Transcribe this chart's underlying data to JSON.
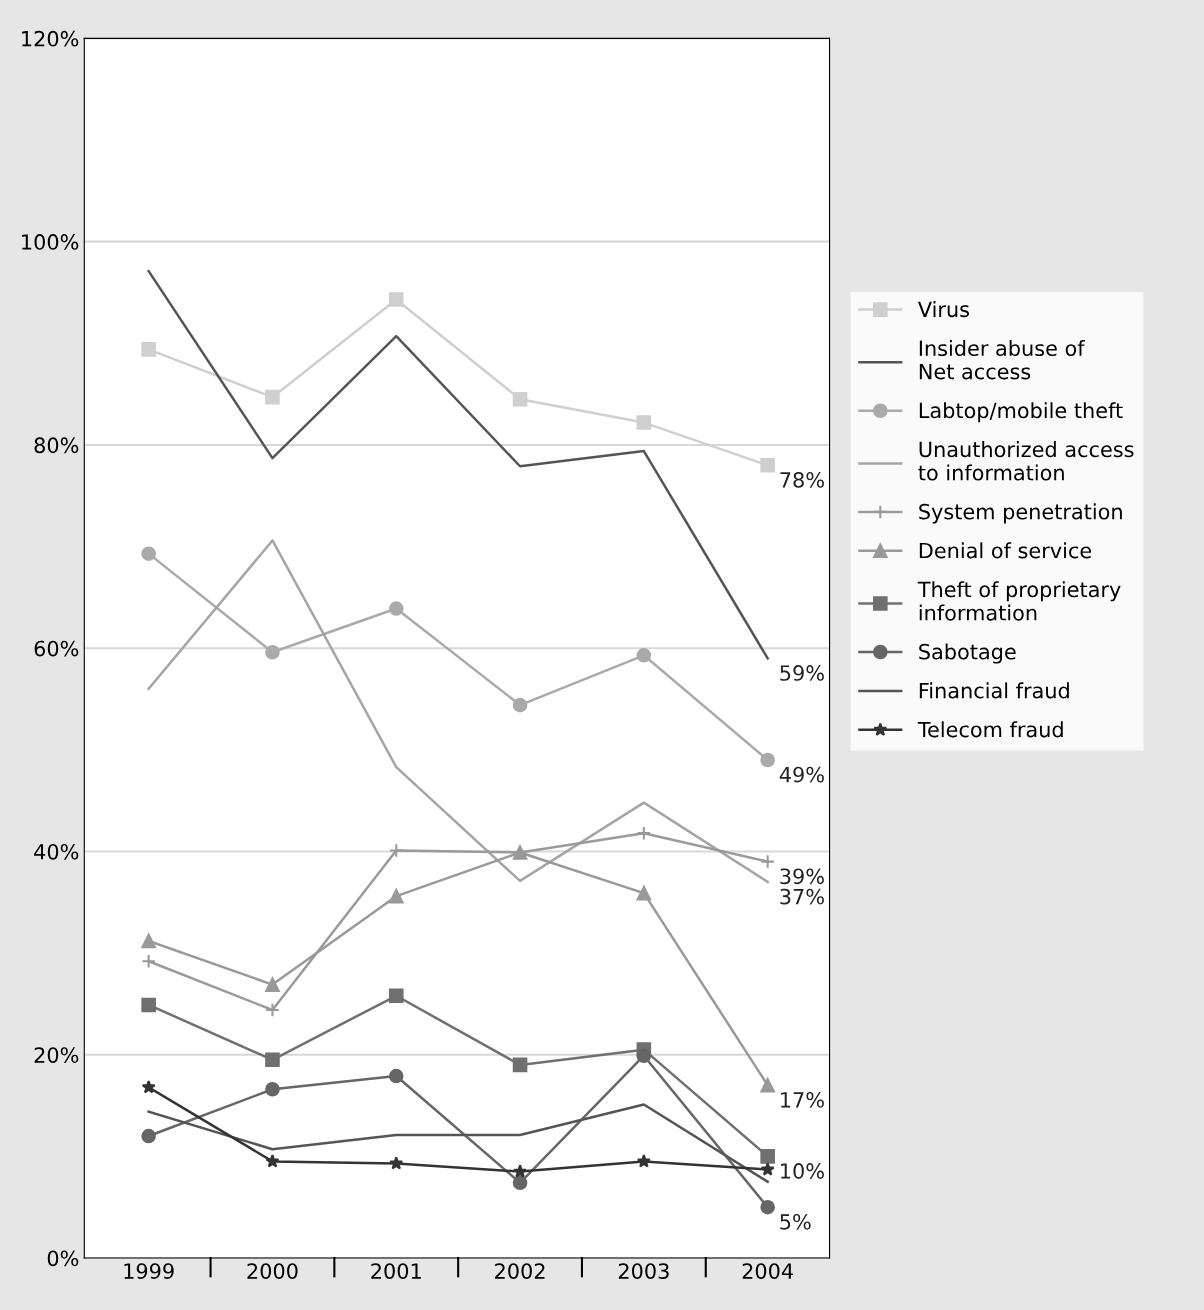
{
  "chart_data": {
    "type": "line",
    "categories": [
      "1999",
      "2000",
      "2001",
      "2002",
      "2003",
      "2004"
    ],
    "ylim": [
      0,
      120
    ],
    "yticks": [
      {
        "value": 0,
        "label": "0%"
      },
      {
        "value": 20,
        "label": "20%"
      },
      {
        "value": 40,
        "label": "40%"
      },
      {
        "value": 60,
        "label": "60%"
      },
      {
        "value": 80,
        "label": "80%"
      },
      {
        "value": 100,
        "label": "100%"
      },
      {
        "value": 120,
        "label": "120%"
      }
    ],
    "grid": "y",
    "legend": "right",
    "series": [
      {
        "name": "Virus",
        "color": "#cfcfcf",
        "marker": "square",
        "values": [
          89.4,
          84.7,
          94.3,
          84.5,
          82.2,
          78
        ],
        "value_labels": [
          null,
          null,
          null,
          null,
          null,
          "78%"
        ]
      },
      {
        "name": "Insider abuse of\nNet access",
        "color": "#555555",
        "marker": "none",
        "values": [
          97.1,
          78.7,
          90.7,
          77.9,
          79.4,
          59
        ],
        "value_labels": [
          null,
          null,
          null,
          null,
          null,
          "59%"
        ]
      },
      {
        "name": "Labtop/mobile theft",
        "color": "#aaaaaa",
        "marker": "circle",
        "values": [
          69.3,
          59.6,
          63.9,
          54.4,
          59.3,
          49
        ],
        "value_labels": [
          null,
          null,
          null,
          null,
          null,
          "49%"
        ]
      },
      {
        "name": "Unauthorized access\nto information",
        "color": "#a5a5a5",
        "marker": "none",
        "values": [
          56.0,
          70.6,
          48.3,
          37.1,
          44.8,
          37
        ],
        "value_labels": [
          null,
          null,
          null,
          null,
          null,
          "37%"
        ]
      },
      {
        "name": "System penetration",
        "color": "#9a9a9a",
        "marker": "cross",
        "values": [
          29.2,
          24.4,
          40.1,
          39.9,
          41.8,
          39
        ],
        "value_labels": [
          null,
          null,
          null,
          null,
          null,
          "39%"
        ]
      },
      {
        "name": "Denial of service",
        "color": "#999999",
        "marker": "triangle",
        "values": [
          31.2,
          26.9,
          35.6,
          39.9,
          35.9,
          17
        ],
        "value_labels": [
          null,
          null,
          null,
          null,
          null,
          "17%"
        ]
      },
      {
        "name": "Theft of proprietary\ninformation",
        "color": "#707070",
        "marker": "square",
        "values": [
          24.9,
          19.5,
          25.8,
          19.0,
          20.5,
          10
        ],
        "value_labels": [
          null,
          null,
          null,
          null,
          null,
          "10%"
        ]
      },
      {
        "name": "Sabotage",
        "color": "#666666",
        "marker": "circle",
        "values": [
          12.0,
          16.6,
          17.9,
          7.4,
          19.9,
          5
        ],
        "value_labels": [
          null,
          null,
          null,
          null,
          null,
          "5%"
        ]
      },
      {
        "name": "Financial fraud",
        "color": "#555555",
        "marker": "none",
        "values": [
          14.4,
          10.7,
          12.1,
          12.1,
          15.1,
          7.5
        ]
      },
      {
        "name": "Telecom fraud",
        "color": "#333333",
        "marker": "star",
        "values": [
          16.8,
          9.5,
          9.3,
          8.5,
          9.5,
          8.7
        ]
      }
    ]
  }
}
